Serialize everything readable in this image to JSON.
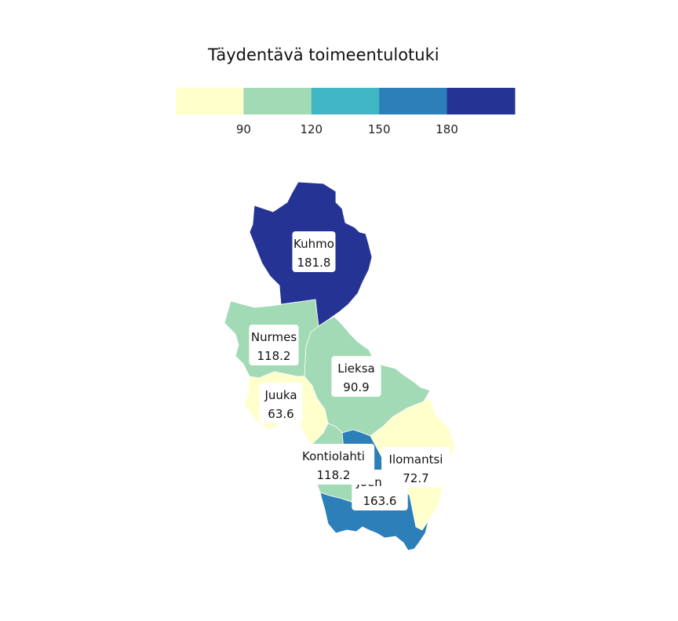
{
  "chart_data": {
    "type": "choropleth",
    "title": "Täydentävä toimeentulotuki",
    "legend": {
      "placement": "top",
      "thresholds": [
        90,
        120,
        150,
        180
      ],
      "tick_labels": [
        "90",
        "120",
        "150",
        "180"
      ],
      "colors": [
        "#ffffcc",
        "#a1dab4",
        "#41b6c4",
        "#2c7fb8",
        "#253494"
      ]
    },
    "regions": [
      {
        "name": "Kuhmo",
        "value": 181.8,
        "value_label": "181.8",
        "color": "#253494"
      },
      {
        "name": "Nurmes",
        "value": 118.2,
        "value_label": "118.2",
        "color": "#a1dab4"
      },
      {
        "name": "Lieksa",
        "value": 90.9,
        "value_label": "90.9",
        "color": "#a1dab4"
      },
      {
        "name": "Juuka",
        "value": 63.6,
        "value_label": "63.6",
        "color": "#ffffcc"
      },
      {
        "name": "Ilomantsi",
        "value": 72.7,
        "value_label": "72.7",
        "color": "#ffffcc"
      },
      {
        "name": "Joensuu",
        "value": 163.6,
        "value_label": "163.6",
        "color": "#2c7fb8"
      },
      {
        "name": "Kontiolahti",
        "value": 118.2,
        "value_label": "118.2",
        "color": "#a1dab4"
      }
    ]
  }
}
